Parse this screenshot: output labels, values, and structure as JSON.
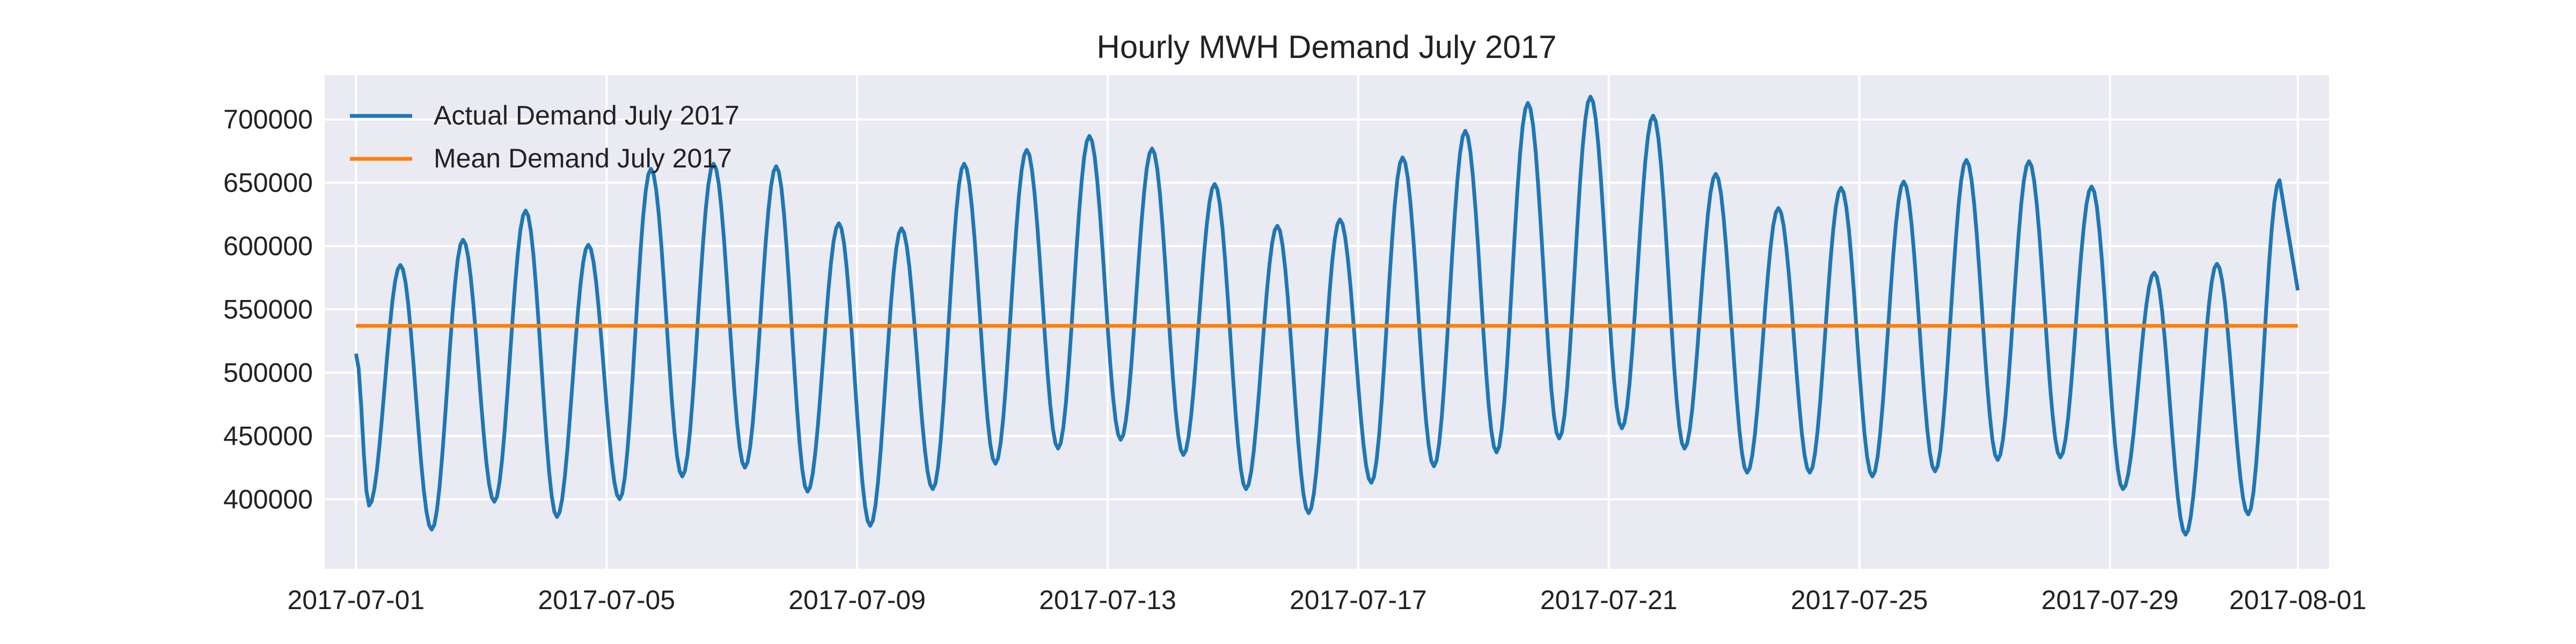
{
  "chart_data": {
    "type": "line",
    "title": "Hourly MWH Demand July 2017",
    "xlabel": "",
    "ylabel": "",
    "x_range": [
      "2017-06-30T12:00",
      "2017-08-01T12:00"
    ],
    "ylim": [
      345000,
      735000
    ],
    "grid": true,
    "legend_position": "top-left",
    "x_ticks": [
      "2017-07-01",
      "2017-07-05",
      "2017-07-09",
      "2017-07-13",
      "2017-07-17",
      "2017-07-21",
      "2017-07-25",
      "2017-07-29",
      "2017-08-01"
    ],
    "y_ticks": [
      400000,
      450000,
      500000,
      550000,
      600000,
      650000,
      700000
    ],
    "y_tick_labels": [
      "400000",
      "450000",
      "500000",
      "550000",
      "600000",
      "650000",
      "700000"
    ],
    "series": [
      {
        "name": "Actual Demand July 2017",
        "color": "#1f77b4",
        "start": "2017-07-01T00:00",
        "end": "2017-08-01T00:00",
        "first_value": 515000,
        "last_value": 565000,
        "daily_min": [
          395000,
          376000,
          398000,
          386000,
          400000,
          418000,
          425000,
          406000,
          379000,
          408000,
          428000,
          440000,
          447000,
          435000,
          408000,
          389000,
          413000,
          426000,
          437000,
          448000,
          456000,
          440000,
          421000,
          421000,
          418000,
          422000,
          431000,
          433000,
          408000,
          372000,
          388000
        ],
        "daily_max": [
          585000,
          605000,
          628000,
          601000,
          661000,
          665000,
          663000,
          618000,
          614000,
          665000,
          676000,
          687000,
          677000,
          649000,
          616000,
          621000,
          670000,
          691000,
          713000,
          718000,
          703000,
          657000,
          630000,
          646000,
          651000,
          668000,
          667000,
          647000,
          579000,
          586000,
          652000
        ]
      },
      {
        "name": "Mean Demand July 2017",
        "color": "#ff7f0e",
        "start": "2017-07-01T00:00",
        "end": "2017-08-01T00:00",
        "value": 537000
      }
    ]
  }
}
